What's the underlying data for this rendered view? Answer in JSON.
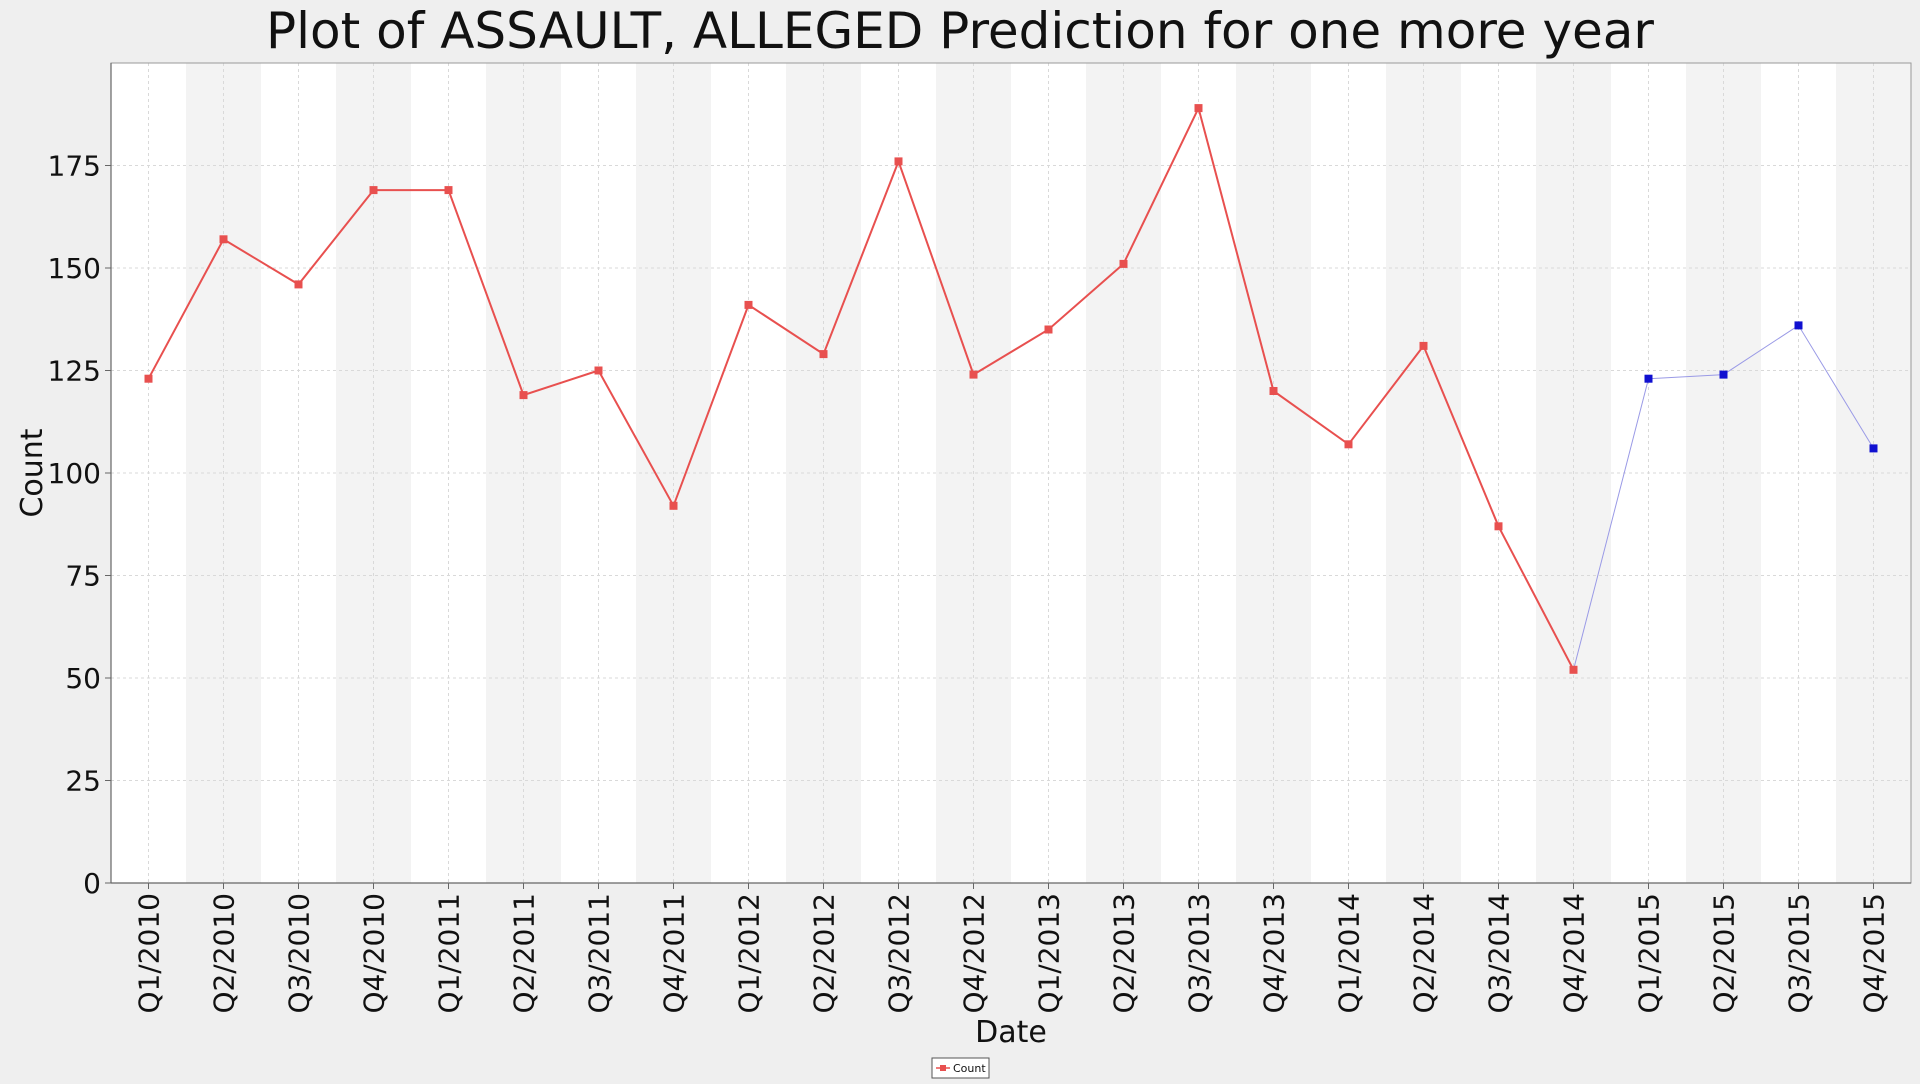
{
  "chart_data": {
    "type": "line",
    "title": "Plot of ASSAULT, ALLEGED Prediction for one more year",
    "xlabel": "Date",
    "ylabel": "Count",
    "ylim": [
      0,
      200
    ],
    "yticks": [
      0,
      25,
      50,
      75,
      100,
      125,
      150,
      175
    ],
    "grid": true,
    "alternating_bands": true,
    "legend_position": "bottom-center",
    "categories": [
      "Q1/2010",
      "Q2/2010",
      "Q3/2010",
      "Q4/2010",
      "Q1/2011",
      "Q2/2011",
      "Q3/2011",
      "Q4/2011",
      "Q1/2012",
      "Q2/2012",
      "Q3/2012",
      "Q4/2012",
      "Q1/2013",
      "Q2/2013",
      "Q3/2013",
      "Q4/2013",
      "Q1/2014",
      "Q2/2014",
      "Q3/2014",
      "Q4/2014",
      "Q1/2015",
      "Q2/2015",
      "Q3/2015",
      "Q4/2015"
    ],
    "series": [
      {
        "name": "Count",
        "color": "#e8504f",
        "marker": "square",
        "in_legend": true,
        "values": [
          123,
          157,
          146,
          169,
          169,
          119,
          125,
          92,
          141,
          129,
          176,
          124,
          135,
          151,
          189,
          120,
          107,
          131,
          87,
          52,
          null,
          null,
          null,
          null
        ]
      },
      {
        "color": "#1010d0",
        "line_color": "#9a9ae6",
        "marker": "square",
        "in_legend": false,
        "connect_from_index": 19,
        "values": [
          null,
          null,
          null,
          null,
          null,
          null,
          null,
          null,
          null,
          null,
          null,
          null,
          null,
          null,
          null,
          null,
          null,
          null,
          null,
          null,
          123,
          124,
          136,
          106
        ]
      }
    ]
  }
}
